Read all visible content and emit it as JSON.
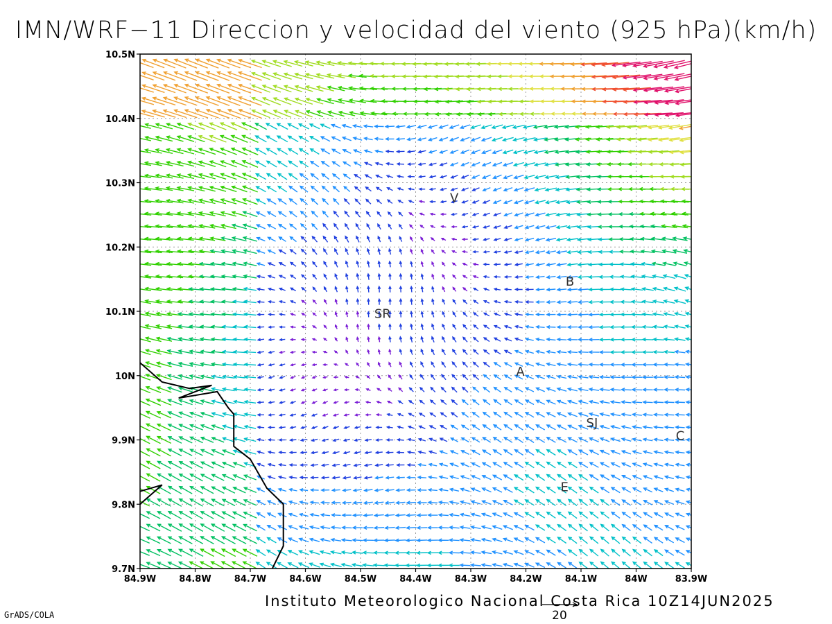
{
  "title": "IMN/WRF−11 Direccion y velocidad del viento (925 hPa)(km/h)",
  "credit": "Instituto Meteorologico Nacional Costa Rica 10Z14JUN2025",
  "software": "GrADS/COLA",
  "reference_vector": {
    "label": "20",
    "speed": 20
  },
  "map": {
    "lon_range": [
      -84.9,
      -83.9
    ],
    "lat_range": [
      9.7,
      10.5
    ],
    "grid": "dotted",
    "x_ticks": [
      "84.9W",
      "84.8W",
      "84.7W",
      "84.6W",
      "84.5W",
      "84.4W",
      "84.3W",
      "84.2W",
      "84.1W",
      "84W",
      "83.9W"
    ],
    "y_ticks": [
      "9.7N",
      "9.8N",
      "9.9N",
      "10N",
      "10.1N",
      "10.2N",
      "10.3N",
      "10.4N",
      "10.5N"
    ],
    "cities": [
      {
        "label": "V",
        "lon": -84.33,
        "lat": 10.27
      },
      {
        "label": "SR",
        "lon": -84.46,
        "lat": 10.09
      },
      {
        "label": "B",
        "lon": -84.12,
        "lat": 10.14
      },
      {
        "label": "A",
        "lon": -84.21,
        "lat": 10.0
      },
      {
        "label": "SJ",
        "lon": -84.08,
        "lat": 9.92
      },
      {
        "label": "C",
        "lon": -83.92,
        "lat": 9.9
      },
      {
        "label": "E",
        "lon": -84.13,
        "lat": 9.82
      }
    ],
    "coastline": [
      [
        -84.9,
        10.02
      ],
      [
        -84.86,
        9.99
      ],
      [
        -84.81,
        9.98
      ],
      [
        -84.77,
        9.985
      ],
      [
        -84.83,
        9.965
      ],
      [
        -84.76,
        9.975
      ],
      [
        -84.74,
        9.95
      ],
      [
        -84.73,
        9.94
      ],
      [
        -84.73,
        9.89
      ],
      [
        -84.7,
        9.87
      ],
      [
        -84.67,
        9.825
      ],
      [
        -84.64,
        9.8
      ],
      [
        -84.64,
        9.735
      ],
      [
        -84.66,
        9.7
      ]
    ],
    "peninsula": [
      [
        -84.9,
        9.8
      ],
      [
        -84.86,
        9.83
      ],
      [
        -84.9,
        9.82
      ]
    ]
  },
  "colors": {
    "speed_scale": [
      "#7b1fd6",
      "#2040e0",
      "#1e90ff",
      "#00c0c8",
      "#00c060",
      "#30d000",
      "#a0dc20",
      "#e0e040",
      "#f0a030",
      "#f05030",
      "#e0106a"
    ],
    "coastline": "#000000",
    "grid": "#9a9a9a"
  }
}
